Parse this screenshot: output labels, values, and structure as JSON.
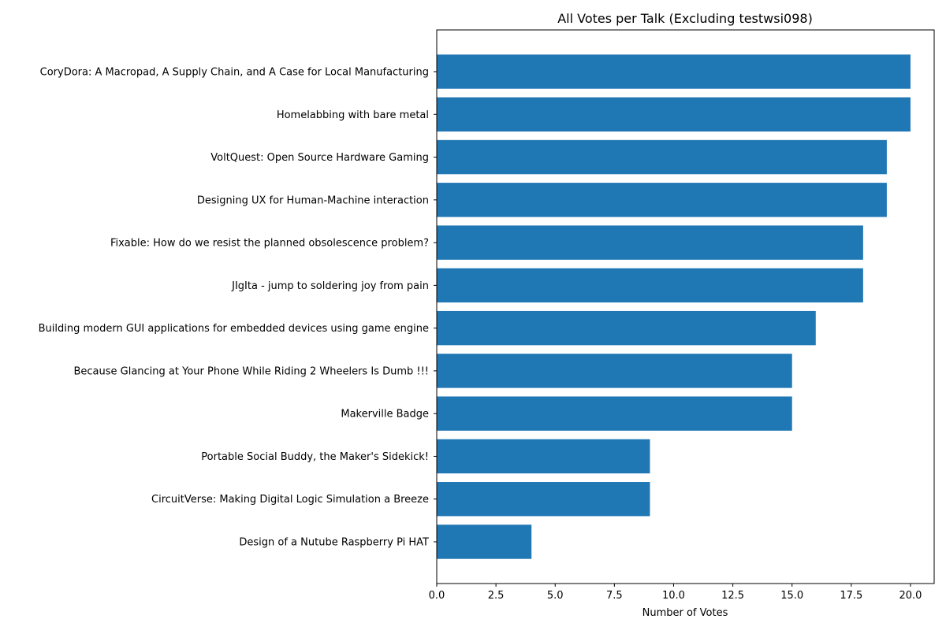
{
  "chart_data": {
    "type": "bar",
    "orientation": "horizontal",
    "title": "All Votes per Talk (Excluding testwsi098)",
    "xlabel": "Number of Votes",
    "ylabel": "",
    "xlim": [
      0,
      21
    ],
    "xticks": [
      0.0,
      2.5,
      5.0,
      7.5,
      10.0,
      12.5,
      15.0,
      17.5,
      20.0
    ],
    "xtick_labels": [
      "0.0",
      "2.5",
      "5.0",
      "7.5",
      "10.0",
      "12.5",
      "15.0",
      "17.5",
      "20.0"
    ],
    "grid": false,
    "bar_color": "#1f77b4",
    "categories": [
      "CoryDora: A Macropad, A Supply Chain, and A Case for Local Manufacturing",
      "Homelabbing with bare metal",
      "VoltQuest: Open Source Hardware Gaming",
      "Designing UX for Human-Machine interaction",
      "Fixable: How do we resist the planned obsolescence problem?",
      "JIgIta - jump to soldering joy from pain",
      "Building modern GUI applications for embedded devices using game engine",
      "Because Glancing at Your Phone While Riding 2 Wheelers Is Dumb !!!",
      "Makerville Badge",
      "Portable Social Buddy, the Maker's Sidekick!",
      "CircuitVerse: Making Digital Logic Simulation a Breeze",
      "Design of a Nutube Raspberry Pi HAT"
    ],
    "values": [
      20,
      20,
      19,
      19,
      18,
      18,
      16,
      15,
      15,
      9,
      9,
      4
    ]
  }
}
